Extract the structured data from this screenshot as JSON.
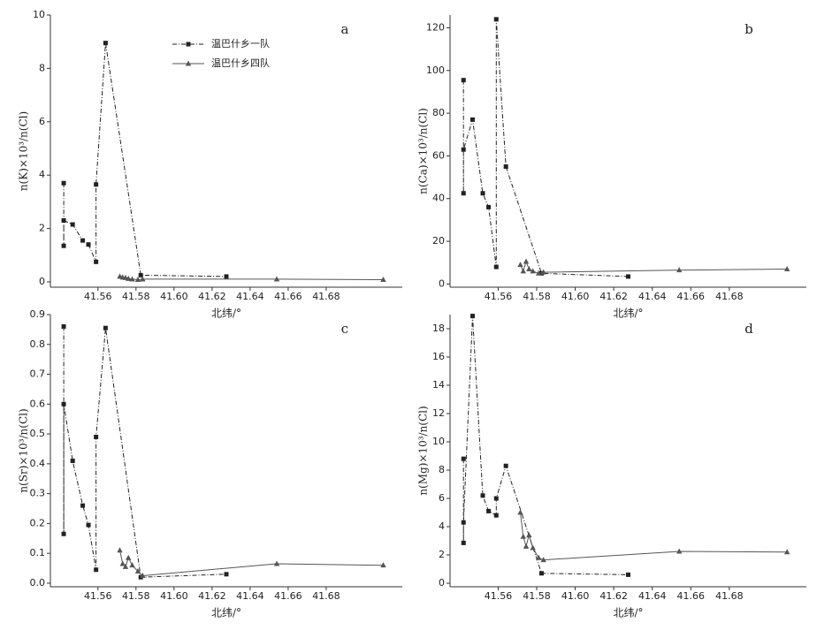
{
  "chart_data": [
    {
      "type": "line",
      "panel_label": "a",
      "y_label": "n(K)×10³/n(Cl)",
      "x_label": "北纬/°",
      "legend": true,
      "xlim": [
        41.535,
        41.72
      ],
      "xticks": [
        41.56,
        41.58,
        {
          "value": 41.6,
          "label": "41.60"
        },
        41.62,
        41.64,
        41.66,
        41.68
      ],
      "ylim": [
        -0.2,
        10
      ],
      "yticks": [
        0,
        2,
        4,
        6,
        8,
        10
      ],
      "series": [
        {
          "name": "温巴什乡一队",
          "color": "#222222",
          "marker": "square",
          "dash": "dash-dot",
          "x": [
            41.542,
            41.542,
            41.542,
            41.5467,
            41.552,
            41.555,
            41.559,
            41.559,
            41.564,
            41.5825,
            41.6275
          ],
          "values": [
            3.7,
            1.35,
            2.3,
            2.15,
            1.55,
            1.4,
            0.75,
            3.65,
            8.95,
            0.25,
            0.2
          ]
        },
        {
          "name": "温巴什乡四队",
          "color": "#555555",
          "marker": "triangle",
          "dash": "solid",
          "x": [
            41.5715,
            41.573,
            41.5745,
            41.576,
            41.578,
            41.581,
            41.5835,
            41.654,
            41.71
          ],
          "values": [
            0.2,
            0.17,
            0.15,
            0.12,
            0.1,
            0.08,
            0.1,
            0.1,
            0.08
          ]
        }
      ]
    },
    {
      "type": "line",
      "panel_label": "b",
      "y_label": "n(Ca)×10³/n(Cl)",
      "x_label": "北纬/°",
      "legend": false,
      "xlim": [
        41.535,
        41.72
      ],
      "xticks": [
        41.56,
        41.58,
        {
          "value": 41.6,
          "label": "41.60"
        },
        41.62,
        41.64,
        41.66,
        41.68
      ],
      "ylim": [
        -1.5,
        126
      ],
      "yticks": [
        0,
        20,
        40,
        60,
        80,
        100,
        120
      ],
      "series": [
        {
          "color": "#222222",
          "marker": "square",
          "dash": "dash-dot",
          "x": [
            41.542,
            41.542,
            41.542,
            41.5467,
            41.552,
            41.555,
            41.559,
            41.559,
            41.564,
            41.5825,
            41.6275
          ],
          "values": [
            95.5,
            42.5,
            63,
            77,
            42.5,
            36,
            8,
            124,
            55,
            5,
            3.5
          ]
        },
        {
          "color": "#555555",
          "marker": "triangle",
          "dash": "solid",
          "x": [
            41.5715,
            41.573,
            41.5745,
            41.576,
            41.578,
            41.581,
            41.5835,
            41.654,
            41.71
          ],
          "values": [
            9,
            6,
            10.5,
            7,
            6,
            5,
            5.5,
            6.5,
            7
          ]
        }
      ]
    },
    {
      "type": "line",
      "panel_label": "c",
      "y_label": "n(Sr)×10³/n(Cl)",
      "x_label": "北纬/°",
      "legend": false,
      "xlim": [
        41.535,
        41.72
      ],
      "xticks": [
        41.56,
        41.58,
        {
          "value": 41.6,
          "label": "41.60"
        },
        41.62,
        41.64,
        41.66,
        41.68
      ],
      "ylim": [
        -0.012,
        0.9
      ],
      "yticks": [
        {
          "value": 0,
          "label": "0.0"
        },
        0.1,
        0.2,
        0.3,
        0.4,
        0.5,
        0.6,
        0.7,
        0.8,
        0.9
      ],
      "series": [
        {
          "color": "#222222",
          "marker": "square",
          "dash": "dash-dot",
          "x": [
            41.542,
            41.542,
            41.542,
            41.5467,
            41.552,
            41.555,
            41.559,
            41.559,
            41.564,
            41.5825,
            41.6275
          ],
          "values": [
            0.86,
            0.165,
            0.6,
            0.41,
            0.26,
            0.195,
            0.045,
            0.49,
            0.855,
            0.02,
            0.03
          ]
        },
        {
          "color": "#555555",
          "marker": "triangle",
          "dash": "solid",
          "x": [
            41.5715,
            41.573,
            41.5745,
            41.576,
            41.578,
            41.581,
            41.5835,
            41.654,
            41.71
          ],
          "values": [
            0.11,
            0.065,
            0.055,
            0.085,
            0.06,
            0.04,
            0.025,
            0.065,
            0.06
          ]
        }
      ]
    },
    {
      "type": "line",
      "panel_label": "d",
      "y_label": "n(Mg)×10³/n(Cl)",
      "x_label": "北纬/°",
      "legend": false,
      "xlim": [
        41.535,
        41.72
      ],
      "xticks": [
        41.56,
        41.58,
        {
          "value": 41.6,
          "label": "41.60"
        },
        41.62,
        41.64,
        41.66,
        41.68
      ],
      "ylim": [
        -0.25,
        19
      ],
      "yticks": [
        0,
        2,
        4,
        6,
        8,
        10,
        12,
        14,
        16,
        18
      ],
      "series": [
        {
          "color": "#222222",
          "marker": "square",
          "dash": "dash-dot",
          "x": [
            41.542,
            41.542,
            41.542,
            41.5467,
            41.552,
            41.555,
            41.559,
            41.559,
            41.564,
            41.5825,
            41.6275
          ],
          "values": [
            8.8,
            2.85,
            4.3,
            18.9,
            6.2,
            5.1,
            4.8,
            6.0,
            8.3,
            0.7,
            0.6
          ]
        },
        {
          "color": "#555555",
          "marker": "triangle",
          "dash": "solid",
          "x": [
            41.5715,
            41.573,
            41.5745,
            41.576,
            41.578,
            41.581,
            41.5835,
            41.654,
            41.71
          ],
          "values": [
            5,
            3.3,
            2.6,
            3.4,
            2.5,
            1.8,
            1.65,
            2.25,
            2.2
          ]
        }
      ]
    }
  ]
}
